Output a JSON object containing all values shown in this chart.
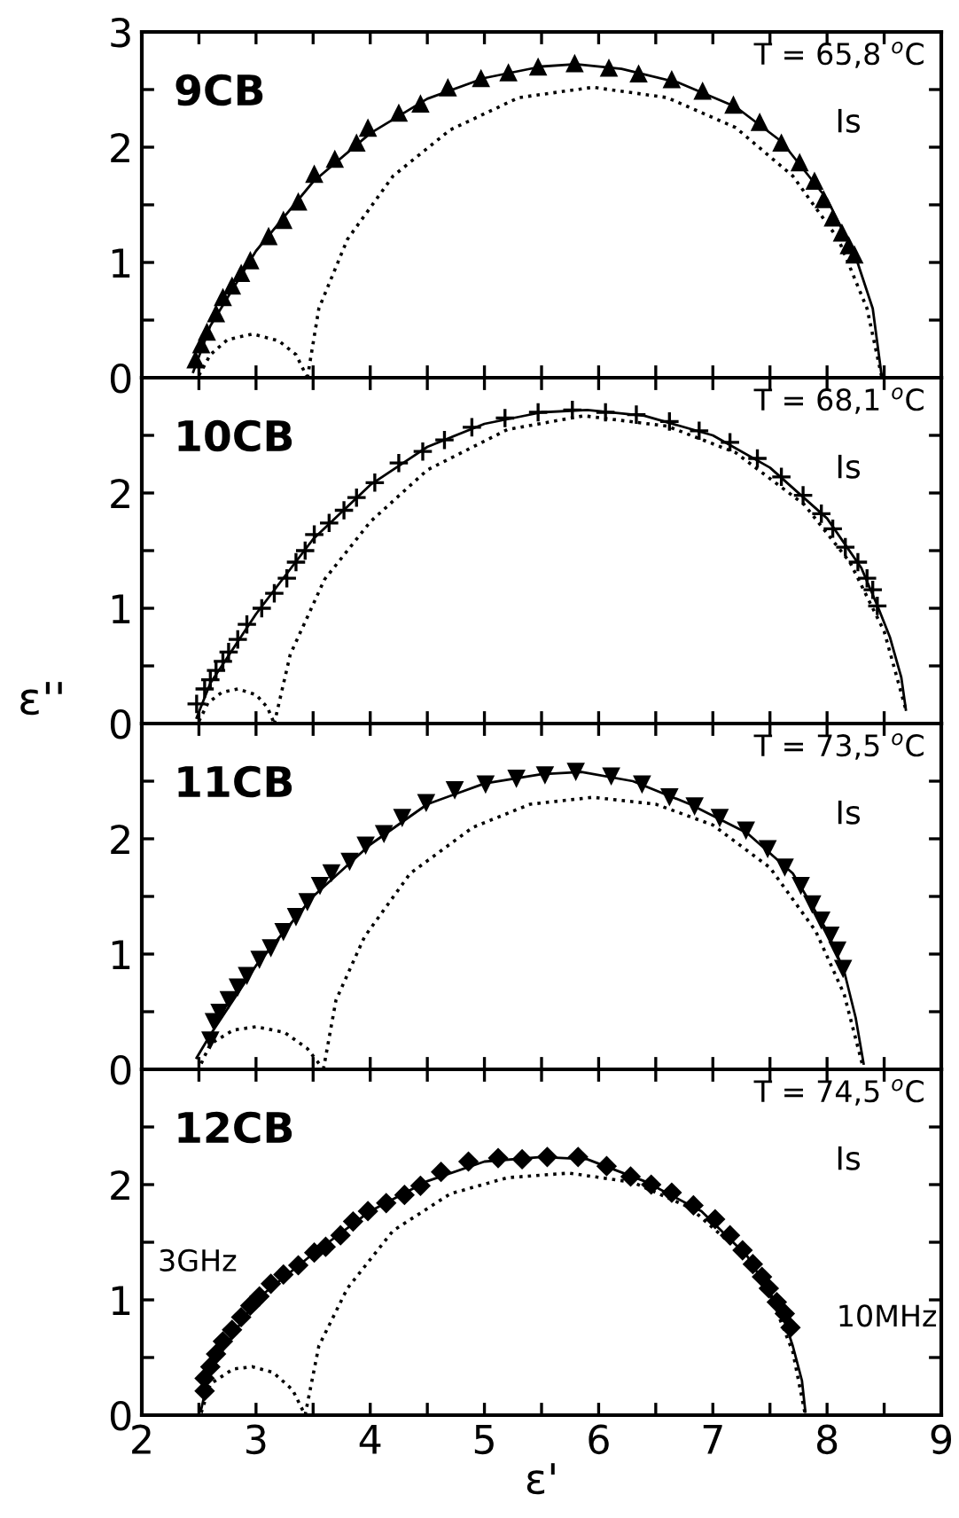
{
  "chart_data": [
    {
      "type": "scatter",
      "xlim": [
        2,
        9
      ],
      "ylim": [
        0,
        3
      ],
      "tick_labels": "y",
      "grid": false,
      "legend": false,
      "xticks": [
        2,
        {
          "value": 2.5,
          "label": null
        },
        3,
        {
          "value": 3.5,
          "label": null
        },
        4,
        {
          "value": 4.5,
          "label": null
        },
        5,
        {
          "value": 5.5,
          "label": null
        },
        6,
        {
          "value": 6.5,
          "label": null
        },
        7,
        {
          "value": 7.5,
          "label": null
        },
        8,
        {
          "value": 8.5,
          "label": null
        },
        9
      ],
      "yticks": [
        0,
        {
          "value": 0.5,
          "label": null
        },
        1,
        {
          "value": 1.5,
          "label": null
        },
        2,
        {
          "value": 2.5,
          "label": null
        },
        3
      ],
      "annotations": [
        "9CB",
        "T = 65,8 $^{o}$C",
        "Is"
      ],
      "series": [
        {
          "type": "scatter",
          "marker": "triangle",
          "color": "#000000",
          "x": [
            2.47,
            2.52,
            2.57,
            2.65,
            2.71,
            2.79,
            2.87,
            2.95,
            3.11,
            3.24,
            3.37,
            3.51,
            3.69,
            3.88,
            3.98,
            4.25,
            4.44,
            4.68,
            4.97,
            5.21,
            5.47,
            5.79,
            6.09,
            6.35,
            6.64,
            6.91,
            7.18,
            7.41,
            7.6,
            7.76,
            7.89,
            7.97,
            8.05,
            8.13,
            8.19,
            8.24
          ],
          "values": [
            0.16,
            0.29,
            0.4,
            0.56,
            0.7,
            0.8,
            0.91,
            1.02,
            1.23,
            1.37,
            1.53,
            1.77,
            1.9,
            2.04,
            2.17,
            2.3,
            2.38,
            2.52,
            2.6,
            2.65,
            2.7,
            2.73,
            2.69,
            2.64,
            2.59,
            2.49,
            2.37,
            2.22,
            2.04,
            1.87,
            1.71,
            1.55,
            1.39,
            1.26,
            1.15,
            1.07
          ]
        },
        {
          "type": "line",
          "line_style": "solid",
          "marker": "none",
          "color": "#000000",
          "x": [
            2.45,
            2.6,
            3.0,
            3.5,
            4.0,
            4.5,
            5.0,
            5.5,
            5.8,
            6.2,
            6.7,
            7.2,
            7.6,
            8.0,
            8.25,
            8.4,
            8.48
          ],
          "values": [
            0.05,
            0.45,
            1.1,
            1.7,
            2.12,
            2.42,
            2.6,
            2.7,
            2.72,
            2.68,
            2.56,
            2.35,
            2.05,
            1.55,
            1.05,
            0.6,
            0
          ]
        },
        {
          "type": "line",
          "line_style": "dotted",
          "marker": "none",
          "color": "#000000",
          "x": [
            2.5,
            2.6,
            2.75,
            2.97,
            3.2,
            3.35,
            3.45
          ],
          "values": [
            0.02,
            0.2,
            0.33,
            0.38,
            0.32,
            0.2,
            0
          ]
        },
        {
          "type": "line",
          "line_style": "dotted",
          "marker": "none",
          "color": "#000000",
          "x": [
            3.45,
            3.55,
            3.8,
            4.2,
            4.7,
            5.3,
            5.95,
            6.6,
            7.2,
            7.7,
            8.1,
            8.35,
            8.48
          ],
          "values": [
            0,
            0.6,
            1.2,
            1.75,
            2.15,
            2.43,
            2.52,
            2.43,
            2.17,
            1.75,
            1.2,
            0.6,
            0
          ]
        }
      ]
    },
    {
      "type": "scatter",
      "xlim": [
        2,
        9
      ],
      "ylim": [
        0,
        3
      ],
      "tick_labels": "y",
      "grid": false,
      "legend": false,
      "ylabel": "ε''",
      "xticks": [
        2,
        {
          "value": 2.5,
          "label": null
        },
        3,
        {
          "value": 3.5,
          "label": null
        },
        4,
        {
          "value": 4.5,
          "label": null
        },
        5,
        {
          "value": 5.5,
          "label": null
        },
        6,
        {
          "value": 6.5,
          "label": null
        },
        7,
        {
          "value": 7.5,
          "label": null
        },
        8,
        {
          "value": 8.5,
          "label": null
        },
        9
      ],
      "yticks": [
        0,
        {
          "value": 0.5,
          "label": null
        },
        1,
        {
          "value": 1.5,
          "label": null
        },
        2,
        {
          "value": 2.5,
          "label": null
        },
        {
          "value": 3,
          "label": null
        }
      ],
      "annotations": [
        "10CB",
        "T = 68,1 $^{o}$C",
        "Is"
      ],
      "series": [
        {
          "type": "scatter",
          "marker": "cross",
          "color": "#000000",
          "x": [
            2.48,
            2.55,
            2.6,
            2.65,
            2.71,
            2.76,
            2.84,
            2.92,
            3.05,
            3.16,
            3.27,
            3.35,
            3.43,
            3.51,
            3.64,
            3.77,
            3.88,
            4.04,
            4.25,
            4.46,
            4.65,
            4.89,
            5.18,
            5.47,
            5.77,
            6.06,
            6.33,
            6.62,
            6.88,
            7.15,
            7.39,
            7.6,
            7.79,
            7.95,
            8.05,
            8.16,
            8.27,
            8.35,
            8.4,
            8.44
          ],
          "values": [
            0.17,
            0.3,
            0.38,
            0.46,
            0.54,
            0.62,
            0.73,
            0.86,
            1.0,
            1.13,
            1.26,
            1.4,
            1.5,
            1.64,
            1.74,
            1.85,
            1.96,
            2.09,
            2.26,
            2.36,
            2.46,
            2.57,
            2.65,
            2.7,
            2.72,
            2.7,
            2.68,
            2.62,
            2.54,
            2.44,
            2.3,
            2.14,
            1.98,
            1.82,
            1.69,
            1.53,
            1.4,
            1.26,
            1.16,
            1.02
          ]
        },
        {
          "type": "line",
          "line_style": "solid",
          "marker": "none",
          "color": "#000000",
          "x": [
            2.48,
            2.6,
            3.0,
            3.5,
            4.0,
            4.5,
            5.0,
            5.5,
            5.9,
            6.4,
            7.0,
            7.5,
            8.0,
            8.3,
            8.45,
            8.55,
            8.65,
            8.69
          ],
          "values": [
            0.05,
            0.35,
            0.95,
            1.6,
            2.07,
            2.4,
            2.6,
            2.7,
            2.72,
            2.67,
            2.5,
            2.22,
            1.78,
            1.35,
            1.0,
            0.75,
            0.4,
            0.12
          ]
        },
        {
          "type": "line",
          "line_style": "dotted",
          "marker": "none",
          "color": "#000000",
          "x": [
            2.5,
            2.58,
            2.7,
            2.84,
            3.0,
            3.1,
            3.16
          ],
          "values": [
            0.02,
            0.18,
            0.27,
            0.3,
            0.25,
            0.14,
            0
          ]
        },
        {
          "type": "line",
          "line_style": "dotted",
          "marker": "none",
          "color": "#000000",
          "x": [
            3.16,
            3.3,
            3.6,
            4.0,
            4.5,
            5.2,
            5.87,
            6.6,
            7.2,
            7.8,
            8.2,
            8.5,
            8.69
          ],
          "values": [
            0,
            0.6,
            1.25,
            1.75,
            2.2,
            2.55,
            2.67,
            2.58,
            2.35,
            1.9,
            1.4,
            0.8,
            0.12
          ]
        }
      ]
    },
    {
      "type": "scatter",
      "xlim": [
        2,
        9
      ],
      "ylim": [
        0,
        3
      ],
      "tick_labels": "y",
      "grid": false,
      "legend": false,
      "xticks": [
        2,
        {
          "value": 2.5,
          "label": null
        },
        3,
        {
          "value": 3.5,
          "label": null
        },
        4,
        {
          "value": 4.5,
          "label": null
        },
        5,
        {
          "value": 5.5,
          "label": null
        },
        6,
        {
          "value": 6.5,
          "label": null
        },
        7,
        {
          "value": 7.5,
          "label": null
        },
        8,
        {
          "value": 8.5,
          "label": null
        },
        9
      ],
      "yticks": [
        0,
        {
          "value": 0.5,
          "label": null
        },
        1,
        {
          "value": 1.5,
          "label": null
        },
        2,
        {
          "value": 2.5,
          "label": null
        },
        {
          "value": 3,
          "label": null
        }
      ],
      "annotations": [
        "11CB",
        "T = 73,5 $^{o}$C",
        "Is"
      ],
      "series": [
        {
          "type": "scatter",
          "marker": "triangle_down",
          "color": "#000000",
          "x": [
            2.6,
            2.63,
            2.68,
            2.76,
            2.84,
            2.92,
            3.03,
            3.13,
            3.24,
            3.35,
            3.45,
            3.56,
            3.66,
            3.82,
            3.96,
            4.12,
            4.28,
            4.49,
            4.74,
            5.01,
            5.28,
            5.53,
            5.8,
            6.11,
            6.38,
            6.62,
            6.84,
            7.06,
            7.29,
            7.48,
            7.63,
            7.77,
            7.87,
            7.95,
            8.03,
            8.09,
            8.14
          ],
          "values": [
            0.25,
            0.41,
            0.49,
            0.6,
            0.71,
            0.81,
            0.95,
            1.05,
            1.19,
            1.32,
            1.45,
            1.59,
            1.7,
            1.8,
            1.94,
            2.04,
            2.18,
            2.31,
            2.42,
            2.47,
            2.52,
            2.55,
            2.58,
            2.54,
            2.47,
            2.36,
            2.28,
            2.18,
            2.07,
            1.91,
            1.75,
            1.59,
            1.43,
            1.29,
            1.16,
            1.03,
            0.87
          ]
        },
        {
          "type": "line",
          "line_style": "solid",
          "marker": "none",
          "color": "#000000",
          "x": [
            2.48,
            2.6,
            3.0,
            3.5,
            4.0,
            4.5,
            5.0,
            5.5,
            5.85,
            6.3,
            6.8,
            7.3,
            7.7,
            8.0,
            8.15,
            8.25,
            8.32
          ],
          "values": [
            0.1,
            0.3,
            0.9,
            1.5,
            1.95,
            2.3,
            2.48,
            2.56,
            2.58,
            2.5,
            2.3,
            2.05,
            1.7,
            1.2,
            0.85,
            0.45,
            0.05
          ]
        },
        {
          "type": "line",
          "line_style": "dotted",
          "marker": "none",
          "color": "#000000",
          "x": [
            2.52,
            2.6,
            2.8,
            3.0,
            3.25,
            3.45,
            3.59
          ],
          "values": [
            0.05,
            0.22,
            0.34,
            0.37,
            0.32,
            0.18,
            0
          ]
        },
        {
          "type": "line",
          "line_style": "dotted",
          "marker": "none",
          "color": "#000000",
          "x": [
            3.59,
            3.7,
            3.95,
            4.35,
            4.9,
            5.4,
            5.95,
            6.5,
            7.0,
            7.5,
            7.9,
            8.15,
            8.32
          ],
          "values": [
            0,
            0.6,
            1.15,
            1.7,
            2.1,
            2.3,
            2.36,
            2.3,
            2.12,
            1.75,
            1.2,
            0.65,
            0
          ]
        }
      ]
    },
    {
      "type": "scatter",
      "xlim": [
        2,
        9
      ],
      "ylim": [
        0,
        3
      ],
      "grid": false,
      "legend": false,
      "xlabel": "ε'",
      "xticks": [
        2,
        {
          "value": 2.5,
          "label": null
        },
        3,
        {
          "value": 3.5,
          "label": null
        },
        4,
        {
          "value": 4.5,
          "label": null
        },
        5,
        {
          "value": 5.5,
          "label": null
        },
        6,
        {
          "value": 6.5,
          "label": null
        },
        7,
        {
          "value": 7.5,
          "label": null
        },
        8,
        {
          "value": 8.5,
          "label": null
        },
        9
      ],
      "yticks": [
        0,
        {
          "value": 0.5,
          "label": null
        },
        1,
        {
          "value": 1.5,
          "label": null
        },
        2,
        {
          "value": 2.5,
          "label": null
        },
        {
          "value": 3,
          "label": null
        }
      ],
      "annotations": [
        "12CB",
        "T = 74,5 $^{o}$C",
        "Is",
        "3GHz",
        "10MHz"
      ],
      "series": [
        {
          "type": "scatter",
          "marker": "diamond",
          "color": "#000000",
          "x": [
            2.55,
            2.55,
            2.6,
            2.65,
            2.71,
            2.79,
            2.87,
            2.95,
            3.03,
            3.13,
            3.24,
            3.37,
            3.51,
            3.61,
            3.74,
            3.85,
            3.98,
            4.14,
            4.3,
            4.44,
            4.62,
            4.86,
            5.12,
            5.33,
            5.55,
            5.82,
            6.07,
            6.28,
            6.46,
            6.64,
            6.83,
            7.02,
            7.15,
            7.26,
            7.35,
            7.43,
            7.49,
            7.56,
            7.63,
            7.68
          ],
          "values": [
            0.21,
            0.32,
            0.42,
            0.53,
            0.64,
            0.74,
            0.85,
            0.95,
            1.03,
            1.14,
            1.22,
            1.3,
            1.41,
            1.46,
            1.56,
            1.68,
            1.77,
            1.84,
            1.91,
            1.99,
            2.11,
            2.2,
            2.23,
            2.22,
            2.24,
            2.24,
            2.16,
            2.07,
            2.0,
            1.93,
            1.82,
            1.7,
            1.56,
            1.43,
            1.31,
            1.2,
            1.1,
            0.98,
            0.88,
            0.76
          ]
        },
        {
          "type": "line",
          "line_style": "solid",
          "marker": "none",
          "color": "#000000",
          "x": [
            2.52,
            2.6,
            3.0,
            3.5,
            4.0,
            4.5,
            5.0,
            5.5,
            5.9,
            6.4,
            6.9,
            7.3,
            7.6,
            7.7,
            7.78,
            7.81
          ],
          "values": [
            0.05,
            0.4,
            1.0,
            1.4,
            1.77,
            2.03,
            2.2,
            2.24,
            2.22,
            2.03,
            1.77,
            1.38,
            0.9,
            0.6,
            0.3,
            0.03
          ]
        },
        {
          "type": "line",
          "line_style": "dotted",
          "marker": "none",
          "color": "#000000",
          "x": [
            2.52,
            2.6,
            2.8,
            2.97,
            3.15,
            3.32,
            3.43
          ],
          "values": [
            0.02,
            0.27,
            0.4,
            0.42,
            0.37,
            0.22,
            0
          ]
        },
        {
          "type": "line",
          "line_style": "dotted",
          "marker": "none",
          "color": "#000000",
          "x": [
            3.43,
            3.55,
            3.8,
            4.2,
            4.7,
            5.2,
            5.74,
            6.3,
            6.8,
            7.2,
            7.5,
            7.7,
            7.81
          ],
          "values": [
            0,
            0.6,
            1.1,
            1.6,
            1.92,
            2.06,
            2.1,
            2.02,
            1.8,
            1.45,
            1.05,
            0.55,
            0
          ]
        }
      ]
    }
  ]
}
